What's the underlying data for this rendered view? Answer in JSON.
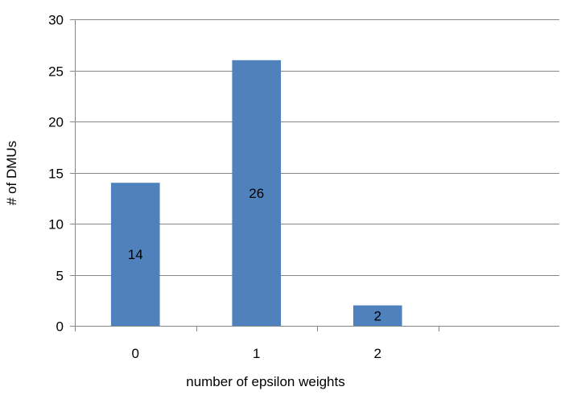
{
  "chart_data": {
    "type": "bar",
    "title": "",
    "xlabel": "number of epsilon weights",
    "ylabel": "# of DMUs",
    "categories": [
      "0",
      "1",
      "2"
    ],
    "values": [
      14,
      26,
      2
    ],
    "data_labels": [
      "14",
      "26",
      "2"
    ],
    "ylim": [
      0,
      30
    ],
    "yticks": [
      0,
      5,
      10,
      15,
      20,
      25,
      30
    ],
    "category_slots": 4,
    "grid": true,
    "legend": "none",
    "colors": {
      "bar": "#4F81BD",
      "grid": "#868686",
      "axis": "#868686"
    }
  }
}
